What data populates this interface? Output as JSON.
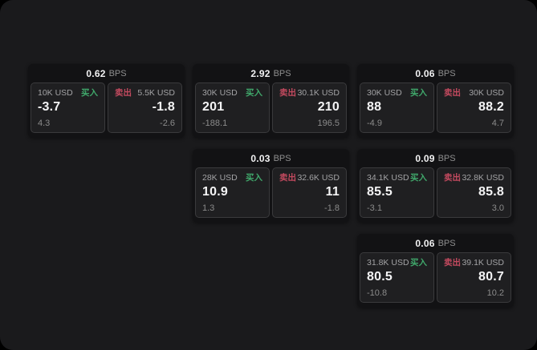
{
  "labels": {
    "bps_suffix": "BPS",
    "buy": "买入",
    "sell": "卖出"
  },
  "colors": {
    "outside_bg": "#000000",
    "window_bg": "#1a1a1c",
    "card_bg": "#121214",
    "panel_bg": "#1f1f21",
    "panel_border": "#3a3a3c",
    "buy_green": "#40a86b",
    "sell_red": "#c34a5f",
    "value_white": "#f4f4f5",
    "muted_gray": "#8b8b8b"
  },
  "cards": [
    {
      "bps": "0.62",
      "buy": {
        "amount": "10K USD",
        "value": "-3.7",
        "sub": "4.3"
      },
      "sell": {
        "amount": "5.5K USD",
        "value": "-1.8",
        "sub": "-2.6"
      }
    },
    {
      "bps": "2.92",
      "buy": {
        "amount": "30K USD",
        "value": "201",
        "sub": "-188.1"
      },
      "sell": {
        "amount": "30.1K USD",
        "value": "210",
        "sub": "196.5"
      }
    },
    {
      "bps": "0.06",
      "buy": {
        "amount": "30K USD",
        "value": "88",
        "sub": "-4.9"
      },
      "sell": {
        "amount": "30K USD",
        "value": "88.2",
        "sub": "4.7"
      }
    },
    {
      "bps": "0.03",
      "buy": {
        "amount": "28K USD",
        "value": "10.9",
        "sub": "1.3"
      },
      "sell": {
        "amount": "32.6K USD",
        "value": "11",
        "sub": "-1.8"
      }
    },
    {
      "bps": "0.09",
      "buy": {
        "amount": "34.1K USD",
        "value": "85.5",
        "sub": "-3.1"
      },
      "sell": {
        "amount": "32.8K USD",
        "value": "85.8",
        "sub": "3.0"
      }
    },
    {
      "bps": "0.06",
      "buy": {
        "amount": "31.8K USD",
        "value": "80.5",
        "sub": "-10.8"
      },
      "sell": {
        "amount": "39.1K USD",
        "value": "80.7",
        "sub": "10.2"
      }
    }
  ]
}
